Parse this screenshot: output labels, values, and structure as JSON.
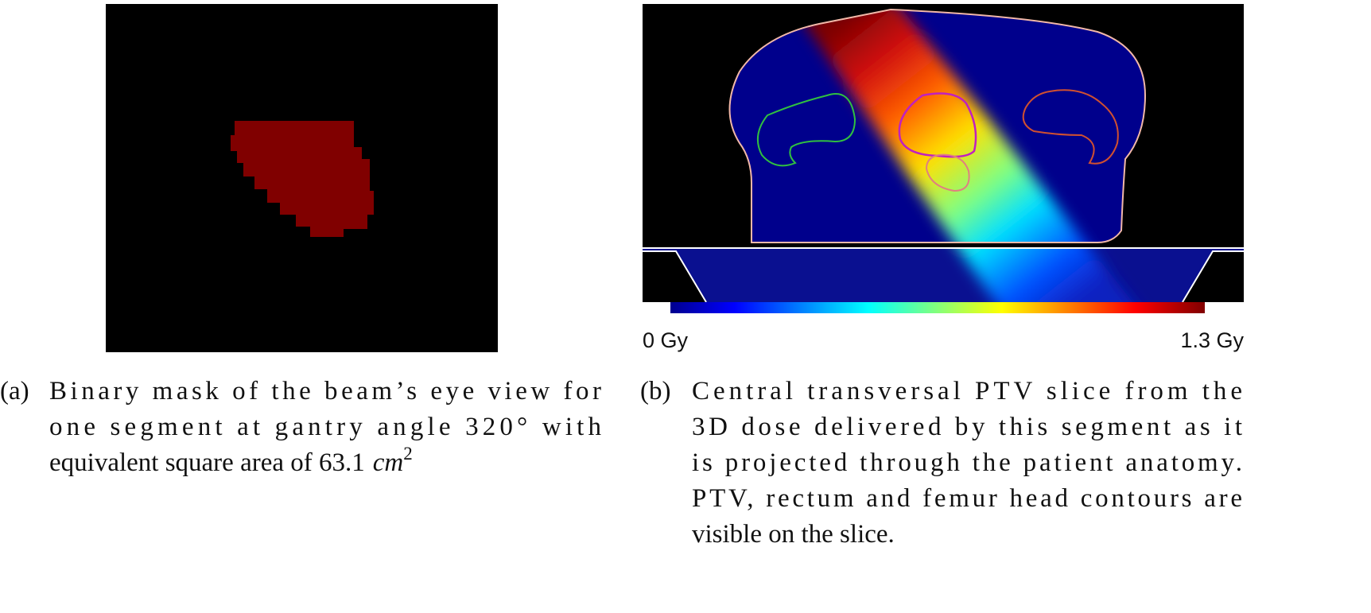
{
  "figure": {
    "panel_b": {
      "colorbar_min_label": "0 Gy",
      "colorbar_max_label": "1.3 Gy"
    },
    "caption_a": {
      "label": "(a)",
      "lines": [
        "Binary mask of the beam’s eye view for",
        "one segment at gantry angle 320° with",
        "equivalent square area of 63.1"
      ],
      "unit": "cm",
      "unit_exponent": "2"
    },
    "caption_b": {
      "label": "(b)",
      "lines": [
        "Central transversal PTV slice from the",
        "3D dose delivered by this segment as it",
        "is projected through the patient anatomy.",
        "PTV, rectum and femur head contours are",
        "visible on the slice."
      ]
    }
  }
}
